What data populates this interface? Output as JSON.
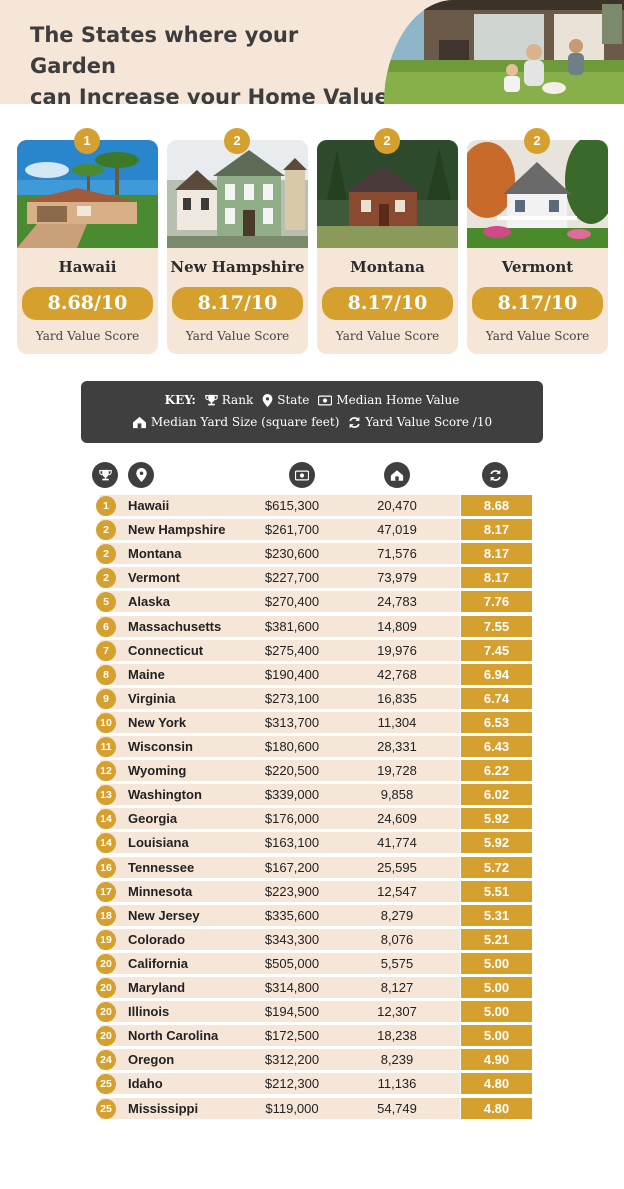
{
  "header": {
    "title_line1": "The States where your Garden",
    "title_line2": "can Increase your Home Value"
  },
  "cards": [
    {
      "rank": "1",
      "state": "Hawaii",
      "score": "8.68/10",
      "score_label": "Yard Value Score"
    },
    {
      "rank": "2",
      "state": "New Hampshire",
      "score": "8.17/10",
      "score_label": "Yard Value Score"
    },
    {
      "rank": "2",
      "state": "Montana",
      "score": "8.17/10",
      "score_label": "Yard Value Score"
    },
    {
      "rank": "2",
      "state": "Vermont",
      "score": "8.17/10",
      "score_label": "Yard Value Score"
    }
  ],
  "key": {
    "label": "KEY:",
    "rank": "Rank",
    "state": "State",
    "median_home_value": "Median Home Value",
    "median_yard_size": "Median Yard Size (square feet)",
    "yard_value_score": "Yard Value Score /10"
  },
  "icons": {
    "rank": "trophy-icon",
    "state": "map-pin-icon",
    "home_value": "money-icon",
    "yard_size": "house-yard-icon",
    "score": "refresh-icon"
  },
  "colors": {
    "accent": "#d6a02e",
    "row_bg": "#f5e6d8",
    "dark": "#3f3f3f",
    "header_bg": "#f5e6d8"
  },
  "table": {
    "rows": [
      {
        "rank": "1",
        "state": "Hawaii",
        "home_value": "$615,300",
        "yard_size": "20,470",
        "score": "8.68"
      },
      {
        "rank": "2",
        "state": "New Hampshire",
        "home_value": "$261,700",
        "yard_size": "47,019",
        "score": "8.17"
      },
      {
        "rank": "2",
        "state": "Montana",
        "home_value": "$230,600",
        "yard_size": "71,576",
        "score": "8.17"
      },
      {
        "rank": "2",
        "state": "Vermont",
        "home_value": "$227,700",
        "yard_size": "73,979",
        "score": "8.17"
      },
      {
        "rank": "5",
        "state": "Alaska",
        "home_value": "$270,400",
        "yard_size": "24,783",
        "score": "7.76"
      },
      {
        "rank": "6",
        "state": "Massachusetts",
        "home_value": "$381,600",
        "yard_size": "14,809",
        "score": "7.55"
      },
      {
        "rank": "7",
        "state": "Connecticut",
        "home_value": "$275,400",
        "yard_size": "19,976",
        "score": "7.45"
      },
      {
        "rank": "8",
        "state": "Maine",
        "home_value": "$190,400",
        "yard_size": "42,768",
        "score": "6.94"
      },
      {
        "rank": "9",
        "state": "Virginia",
        "home_value": "$273,100",
        "yard_size": "16,835",
        "score": "6.74"
      },
      {
        "rank": "10",
        "state": "New York",
        "home_value": "$313,700",
        "yard_size": "11,304",
        "score": "6.53"
      },
      {
        "rank": "11",
        "state": "Wisconsin",
        "home_value": "$180,600",
        "yard_size": "28,331",
        "score": "6.43"
      },
      {
        "rank": "12",
        "state": "Wyoming",
        "home_value": "$220,500",
        "yard_size": "19,728",
        "score": "6.22"
      },
      {
        "rank": "13",
        "state": "Washington",
        "home_value": "$339,000",
        "yard_size": "9,858",
        "score": "6.02"
      },
      {
        "rank": "14",
        "state": "Georgia",
        "home_value": "$176,000",
        "yard_size": "24,609",
        "score": "5.92"
      },
      {
        "rank": "14",
        "state": "Louisiana",
        "home_value": "$163,100",
        "yard_size": "41,774",
        "score": "5.92"
      },
      {
        "rank": "16",
        "state": "Tennessee",
        "home_value": "$167,200",
        "yard_size": "25,595",
        "score": "5.72"
      },
      {
        "rank": "17",
        "state": "Minnesota",
        "home_value": "$223,900",
        "yard_size": "12,547",
        "score": "5.51"
      },
      {
        "rank": "18",
        "state": "New Jersey",
        "home_value": "$335,600",
        "yard_size": "8,279",
        "score": "5.31"
      },
      {
        "rank": "19",
        "state": "Colorado",
        "home_value": "$343,300",
        "yard_size": "8,076",
        "score": "5.21"
      },
      {
        "rank": "20",
        "state": "California",
        "home_value": "$505,000",
        "yard_size": "5,575",
        "score": "5.00"
      },
      {
        "rank": "20",
        "state": "Maryland",
        "home_value": "$314,800",
        "yard_size": "8,127",
        "score": "5.00"
      },
      {
        "rank": "20",
        "state": "Illinois",
        "home_value": "$194,500",
        "yard_size": "12,307",
        "score": "5.00"
      },
      {
        "rank": "20",
        "state": "North Carolina",
        "home_value": "$172,500",
        "yard_size": "18,238",
        "score": "5.00"
      },
      {
        "rank": "24",
        "state": "Oregon",
        "home_value": "$312,200",
        "yard_size": "8,239",
        "score": "4.90"
      },
      {
        "rank": "25",
        "state": "Idaho",
        "home_value": "$212,300",
        "yard_size": "11,136",
        "score": "4.80"
      },
      {
        "rank": "25",
        "state": "Mississippi",
        "home_value": "$119,000",
        "yard_size": "54,749",
        "score": "4.80"
      }
    ]
  }
}
